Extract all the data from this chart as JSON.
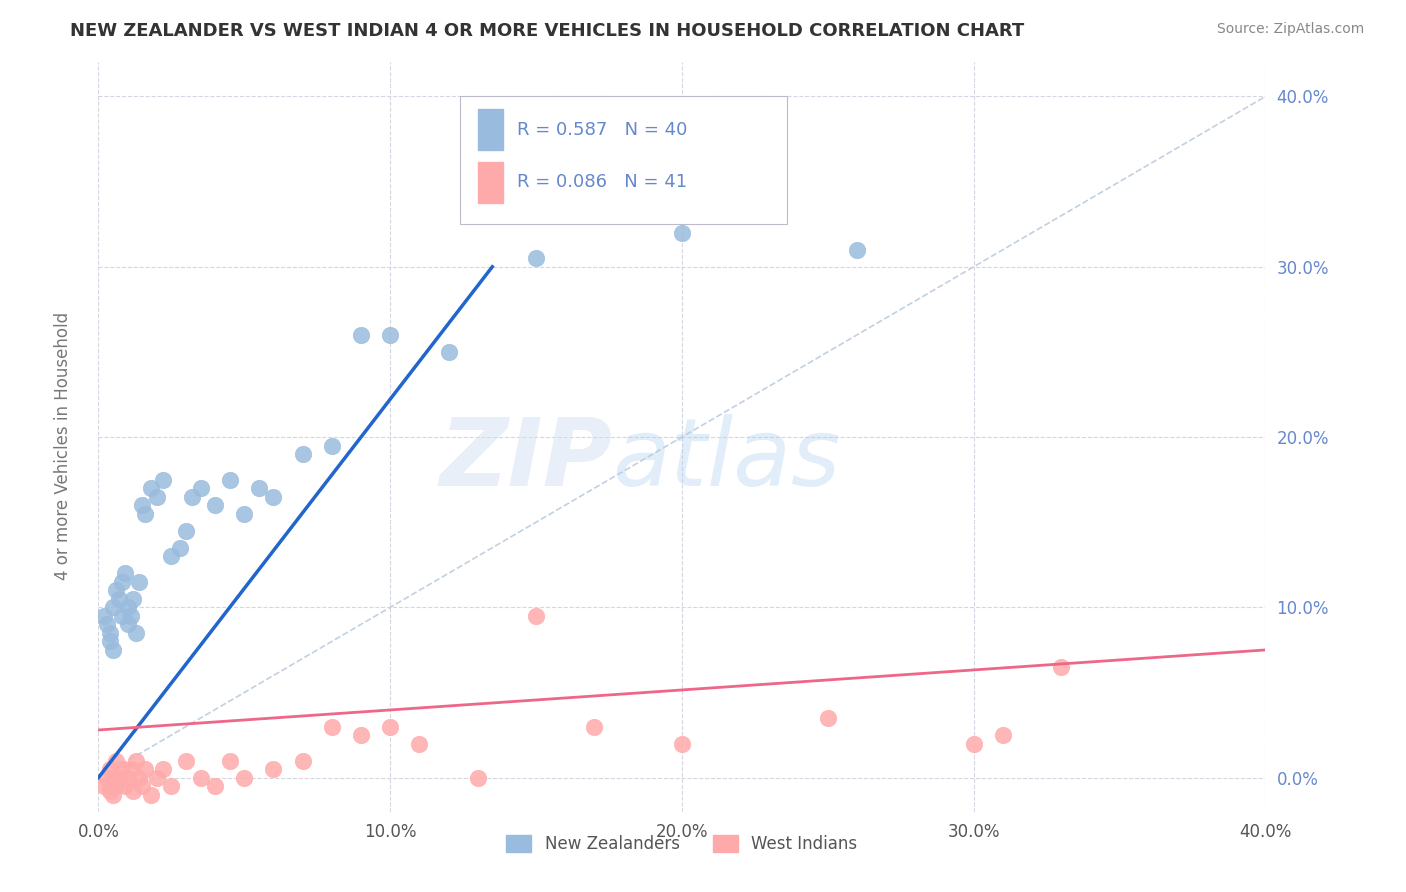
{
  "title": "NEW ZEALANDER VS WEST INDIAN 4 OR MORE VEHICLES IN HOUSEHOLD CORRELATION CHART",
  "source": "Source: ZipAtlas.com",
  "ylabel": "4 or more Vehicles in Household",
  "xlim": [
    0.0,
    0.4
  ],
  "ylim": [
    -0.02,
    0.42
  ],
  "xticks": [
    0.0,
    0.1,
    0.2,
    0.3,
    0.4
  ],
  "yticks": [
    0.0,
    0.1,
    0.2,
    0.3,
    0.4
  ],
  "xtick_labels": [
    "0.0%",
    "10.0%",
    "20.0%",
    "30.0%",
    "40.0%"
  ],
  "ytick_labels": [
    "0.0%",
    "10.0%",
    "20.0%",
    "30.0%",
    "40.0%"
  ],
  "legend_labels": [
    "New Zealanders",
    "West Indians"
  ],
  "R_nz": 0.587,
  "N_nz": 40,
  "R_wi": 0.086,
  "N_wi": 41,
  "blue_color": "#99BBDD",
  "pink_color": "#FFAAAA",
  "blue_line_color": "#2266CC",
  "pink_line_color": "#EE6688",
  "ref_line_color": "#BBCCDD",
  "tick_color": "#6688CC",
  "watermark_zip": "ZIP",
  "watermark_atlas": "atlas",
  "background_color": "#FFFFFF",
  "nz_x": [
    0.002,
    0.003,
    0.004,
    0.004,
    0.005,
    0.005,
    0.006,
    0.007,
    0.008,
    0.008,
    0.009,
    0.01,
    0.01,
    0.011,
    0.012,
    0.013,
    0.014,
    0.015,
    0.016,
    0.018,
    0.02,
    0.022,
    0.025,
    0.028,
    0.03,
    0.032,
    0.035,
    0.04,
    0.045,
    0.05,
    0.055,
    0.06,
    0.07,
    0.08,
    0.09,
    0.1,
    0.12,
    0.15,
    0.2,
    0.26
  ],
  "nz_y": [
    0.095,
    0.09,
    0.085,
    0.08,
    0.075,
    0.1,
    0.11,
    0.105,
    0.095,
    0.115,
    0.12,
    0.09,
    0.1,
    0.095,
    0.105,
    0.085,
    0.115,
    0.16,
    0.155,
    0.17,
    0.165,
    0.175,
    0.13,
    0.135,
    0.145,
    0.165,
    0.17,
    0.16,
    0.175,
    0.155,
    0.17,
    0.165,
    0.19,
    0.195,
    0.26,
    0.26,
    0.25,
    0.305,
    0.32,
    0.31
  ],
  "wi_x": [
    0.002,
    0.003,
    0.004,
    0.004,
    0.005,
    0.005,
    0.006,
    0.006,
    0.007,
    0.008,
    0.009,
    0.01,
    0.011,
    0.012,
    0.013,
    0.014,
    0.015,
    0.016,
    0.018,
    0.02,
    0.022,
    0.025,
    0.03,
    0.035,
    0.04,
    0.045,
    0.05,
    0.06,
    0.07,
    0.08,
    0.09,
    0.1,
    0.11,
    0.13,
    0.15,
    0.17,
    0.2,
    0.25,
    0.3,
    0.33,
    0.31
  ],
  "wi_y": [
    -0.005,
    0.0,
    -0.008,
    0.005,
    -0.01,
    0.0,
    -0.005,
    0.01,
    0.0,
    0.005,
    -0.005,
    0.0,
    0.005,
    -0.008,
    0.01,
    0.0,
    -0.005,
    0.005,
    -0.01,
    0.0,
    0.005,
    -0.005,
    0.01,
    0.0,
    -0.005,
    0.01,
    0.0,
    0.005,
    0.01,
    0.03,
    0.025,
    0.03,
    0.02,
    0.0,
    0.095,
    0.03,
    0.02,
    0.035,
    0.02,
    0.065,
    0.025
  ],
  "nz_blue_line_x": [
    0.0,
    0.135
  ],
  "nz_blue_line_y": [
    0.0,
    0.3
  ],
  "wi_pink_line_x": [
    0.0,
    0.4
  ],
  "wi_pink_line_y": [
    0.028,
    0.075
  ]
}
